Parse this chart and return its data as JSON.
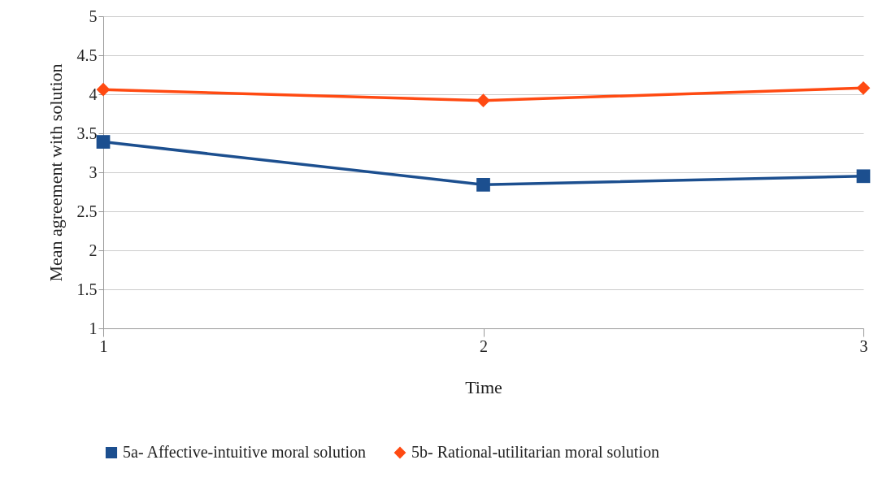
{
  "chart_data": {
    "type": "line",
    "xlabel": "Time",
    "ylabel": "Mean agreement with solution",
    "x": [
      1,
      2,
      3
    ],
    "xlim": [
      1,
      3
    ],
    "xticks": [
      1,
      2,
      3
    ],
    "ylim": [
      1,
      5
    ],
    "yticks": [
      1,
      1.5,
      2,
      2.5,
      3,
      3.5,
      4,
      4.5,
      5
    ],
    "grid": "y",
    "legend": "bottom",
    "series": [
      {
        "name": "5a- Affective-intuitive moral solution",
        "color": "#1c4f8f",
        "marker": "square",
        "values": [
          3.39,
          2.84,
          2.95
        ]
      },
      {
        "name": "5b- Rational-utilitarian moral solution",
        "color": "#ff4a12",
        "marker": "diamond",
        "values": [
          4.06,
          3.92,
          4.08
        ]
      }
    ]
  }
}
